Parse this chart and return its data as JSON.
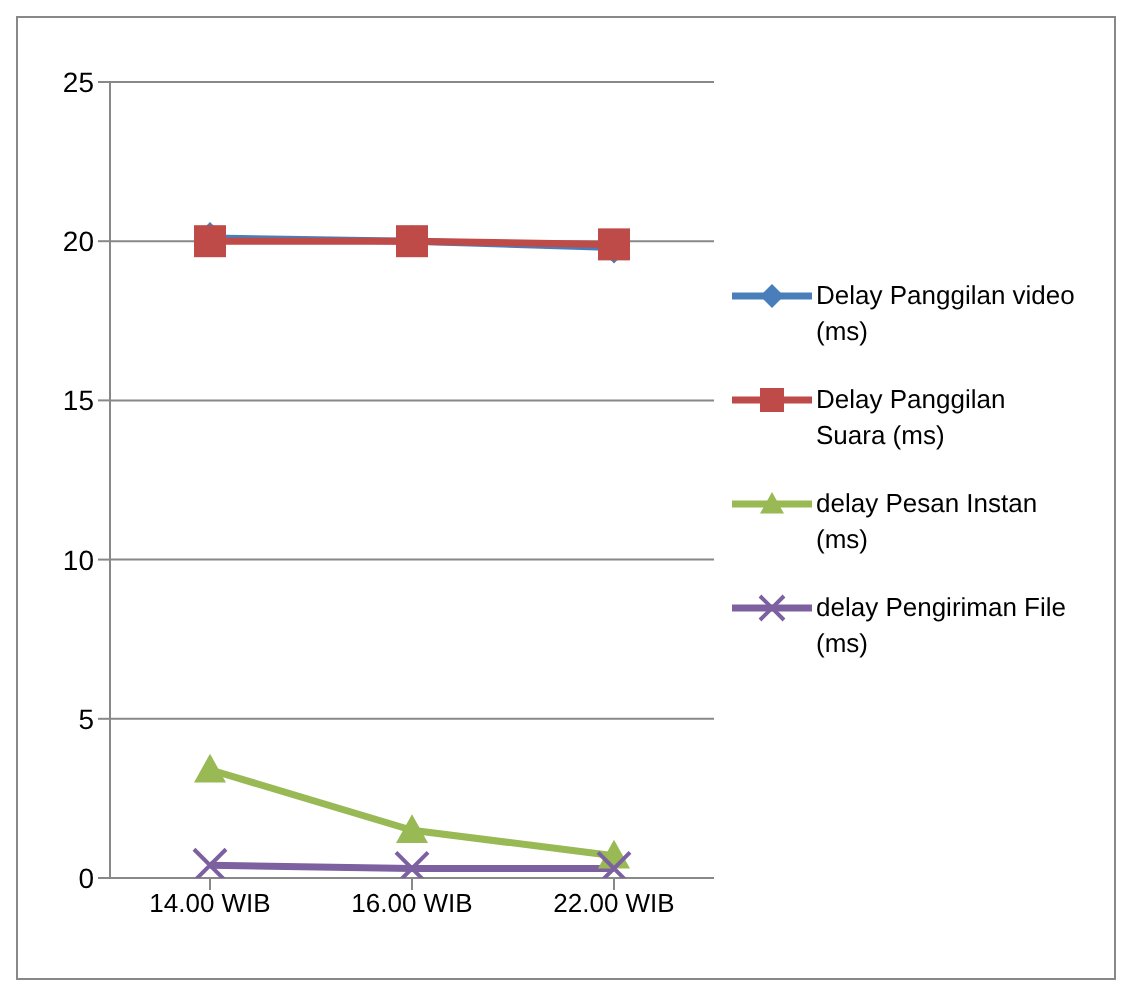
{
  "chart_data": {
    "type": "line",
    "categories": [
      "14.00 WIB",
      "16.00 WIB",
      "22.00 WIB"
    ],
    "series": [
      {
        "name": "Delay Panggilan video (ms)",
        "color": "#4a7ebb",
        "marker": "diamond",
        "values": [
          20.1,
          20.0,
          19.8
        ]
      },
      {
        "name": "Delay Panggilan Suara (ms)",
        "color": "#be4b48",
        "marker": "square",
        "values": [
          20.0,
          20.0,
          19.9
        ]
      },
      {
        "name": "delay Pesan Instan (ms)",
        "color": "#98b954",
        "marker": "triangle",
        "values": [
          3.4,
          1.5,
          0.7
        ]
      },
      {
        "name": "delay Pengiriman File (ms)",
        "color": "#7d60a0",
        "marker": "cross",
        "values": [
          0.4,
          0.3,
          0.3
        ]
      }
    ],
    "ylim": [
      0,
      25
    ],
    "yticks": [
      0,
      5,
      10,
      15,
      20,
      25
    ],
    "grid": "y",
    "legend": "right"
  }
}
